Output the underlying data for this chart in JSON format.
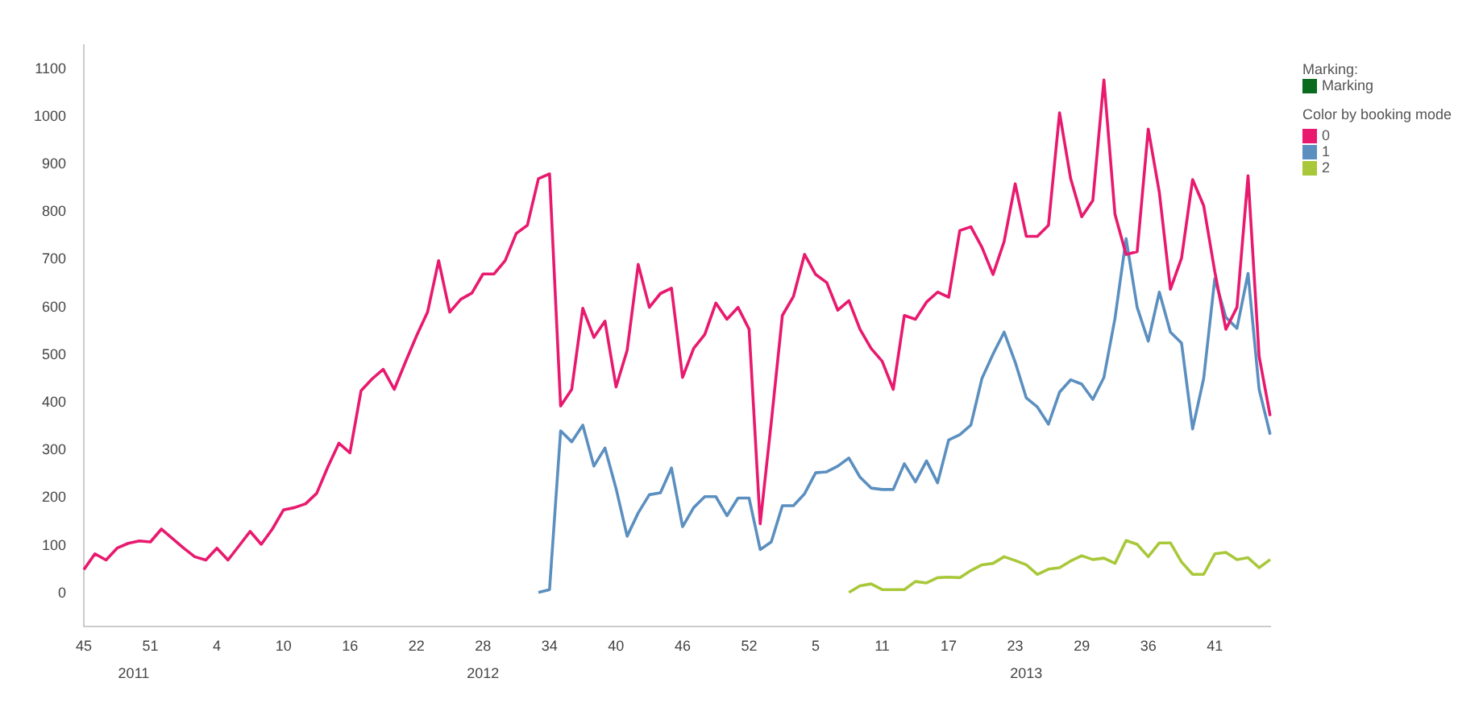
{
  "chart_data": {
    "type": "line",
    "legend_title": "Color by booking mode",
    "legend": "right",
    "grid": false,
    "marker": "none",
    "line_style": "solid",
    "annotations": [
      "Marking:",
      "Marking",
      "2011",
      "2012",
      "2013"
    ],
    "categories": [
      "45",
      null,
      null,
      null,
      null,
      null,
      "51",
      null,
      null,
      null,
      null,
      null,
      "4",
      null,
      null,
      null,
      null,
      null,
      "10",
      null,
      null,
      null,
      null,
      null,
      "16",
      null,
      null,
      null,
      null,
      null,
      "22",
      null,
      null,
      null,
      null,
      null,
      "28",
      null,
      null,
      null,
      null,
      null,
      "34",
      null,
      null,
      null,
      null,
      null,
      "40",
      null,
      null,
      null,
      null,
      null,
      "46",
      null,
      null,
      null,
      null,
      null,
      "52",
      null,
      null,
      null,
      null,
      null,
      "5",
      null,
      null,
      null,
      null,
      null,
      "11",
      null,
      null,
      null,
      null,
      null,
      "17",
      null,
      null,
      null,
      null,
      null,
      "23",
      null,
      null,
      null,
      null,
      null,
      "29",
      null,
      null,
      null,
      null,
      null,
      "36",
      null,
      null,
      null,
      null,
      null,
      "41",
      null,
      null,
      null,
      null,
      null
    ],
    "ylim": [
      -70,
      1150
    ],
    "yticks": [
      0,
      100,
      200,
      300,
      400,
      500,
      600,
      700,
      800,
      900,
      1000,
      1100
    ],
    "series": [
      {
        "name": "0",
        "color": "#e8196e",
        "values": [
          50,
          83,
          70,
          95,
          105,
          110,
          108,
          135,
          115,
          95,
          77,
          70,
          95,
          70,
          100,
          130,
          103,
          135,
          175,
          180,
          188,
          210,
          265,
          315,
          295,
          425,
          450,
          470,
          428,
          485,
          540,
          590,
          698,
          590,
          617,
          630,
          670,
          670,
          698,
          755,
          772,
          870,
          880,
          393,
          428,
          598,
          537,
          571,
          433,
          510,
          690,
          600,
          629,
          640,
          453,
          514,
          543,
          609,
          575,
          600,
          554,
          146,
          359,
          583,
          623,
          711,
          669,
          652,
          594,
          614,
          554,
          514,
          487,
          428,
          583,
          575,
          611,
          632,
          621,
          761,
          769,
          726,
          669,
          738,
          859,
          749,
          749,
          772,
          1008,
          870,
          790,
          824,
          1077,
          795,
          711,
          717,
          974,
          841,
          638,
          703,
          868,
          813,
          675,
          554,
          600,
          876,
          497,
          372
        ]
      },
      {
        "name": "1",
        "color": "#5b8fc0",
        "values": [
          null,
          null,
          null,
          null,
          null,
          null,
          null,
          null,
          null,
          null,
          null,
          null,
          null,
          null,
          null,
          null,
          null,
          null,
          null,
          null,
          null,
          null,
          null,
          null,
          null,
          null,
          null,
          null,
          null,
          null,
          null,
          null,
          null,
          null,
          null,
          null,
          null,
          null,
          null,
          null,
          null,
          2,
          8,
          341,
          318,
          353,
          267,
          305,
          220,
          120,
          169,
          207,
          211,
          263,
          140,
          180,
          203,
          203,
          163,
          200,
          200,
          92,
          108,
          184,
          184,
          209,
          253,
          255,
          267,
          284,
          244,
          221,
          218,
          218,
          272,
          234,
          278,
          232,
          322,
          333,
          353,
          451,
          502,
          548,
          485,
          410,
          391,
          355,
          422,
          448,
          439,
          407,
          453,
          577,
          744,
          600,
          529,
          632,
          548,
          525,
          345,
          451,
          660,
          579,
          556,
          671,
          428,
          333
        ]
      },
      {
        "name": "2",
        "color": "#a8c83a",
        "values": [
          null,
          null,
          null,
          null,
          null,
          null,
          null,
          null,
          null,
          null,
          null,
          null,
          null,
          null,
          null,
          null,
          null,
          null,
          null,
          null,
          null,
          null,
          null,
          null,
          null,
          null,
          null,
          null,
          null,
          null,
          null,
          null,
          null,
          null,
          null,
          null,
          null,
          null,
          null,
          null,
          null,
          null,
          null,
          null,
          null,
          null,
          null,
          null,
          null,
          null,
          null,
          null,
          null,
          null,
          null,
          null,
          null,
          null,
          null,
          null,
          null,
          null,
          null,
          null,
          null,
          null,
          null,
          null,
          null,
          2,
          16,
          20,
          8,
          8,
          8,
          25,
          22,
          33,
          34,
          33,
          48,
          60,
          63,
          77,
          69,
          60,
          40,
          51,
          54,
          68,
          79,
          71,
          74,
          63,
          111,
          103,
          77,
          106,
          106,
          66,
          40,
          40,
          83,
          86,
          71,
          75,
          54,
          71
        ]
      }
    ]
  }
}
